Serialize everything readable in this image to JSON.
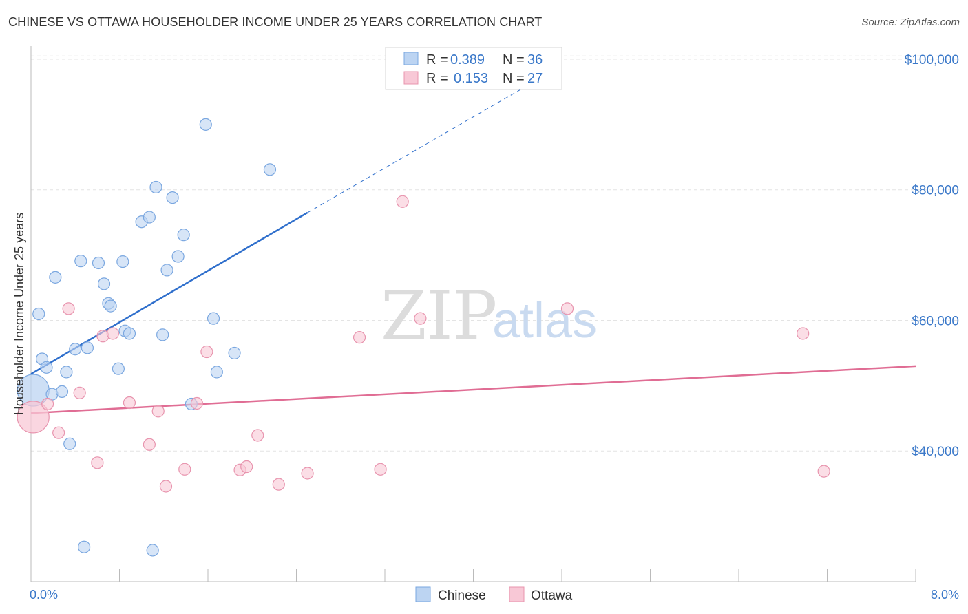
{
  "header": {
    "title": "CHINESE VS OTTAWA HOUSEHOLDER INCOME UNDER 25 YEARS CORRELATION CHART",
    "source": "Source: ZipAtlas.com"
  },
  "watermark": {
    "zip": "ZIP",
    "atlas": "atlas"
  },
  "colors": {
    "chinese_fill": "#bcd4f2",
    "chinese_stroke": "#7aa7e0",
    "chinese_line": "#2f6fcc",
    "ottawa_fill": "#f8c8d6",
    "ottawa_stroke": "#e894ae",
    "ottawa_line": "#e06d94",
    "axis_text": "#3a78c9",
    "grid": "#e4e4e4"
  },
  "chart_data": {
    "type": "scatter",
    "title": "CHINESE VS OTTAWA HOUSEHOLDER INCOME UNDER 25 YEARS CORRELATION CHART",
    "xlabel": "",
    "ylabel": "Householder Income Under 25 years",
    "xlim": [
      0,
      8
    ],
    "ylim": [
      20000,
      102000
    ],
    "x_tick_labels": [
      "0.0%",
      "8.0%"
    ],
    "y_ticks": [
      40000,
      60000,
      80000,
      100000
    ],
    "y_tick_labels": [
      "$40,000",
      "$60,000",
      "$80,000",
      "$100,000"
    ],
    "grid": true,
    "legend": [
      {
        "r_label": "R =",
        "r_value": "0.389",
        "n_label": "N =",
        "n_value": "36"
      },
      {
        "r_label": "R =",
        "r_value": "0.153",
        "n_label": "N =",
        "n_value": "27"
      }
    ],
    "series": [
      {
        "name": "Chinese",
        "r": 0.389,
        "n": 36,
        "trend": {
          "x0": 0.0,
          "y0": 51800,
          "x1": 2.5,
          "y1": 76500,
          "dash_to_x": 4.8,
          "dash_to_y": 99000
        },
        "points": [
          {
            "x": 0.02,
            "y": 49300,
            "big": true
          },
          {
            "x": 0.07,
            "y": 61000
          },
          {
            "x": 0.1,
            "y": 54100
          },
          {
            "x": 0.14,
            "y": 52800
          },
          {
            "x": 0.19,
            "y": 48700
          },
          {
            "x": 0.22,
            "y": 66600
          },
          {
            "x": 0.28,
            "y": 49100
          },
          {
            "x": 0.32,
            "y": 52100
          },
          {
            "x": 0.35,
            "y": 41100
          },
          {
            "x": 0.4,
            "y": 55600
          },
          {
            "x": 0.45,
            "y": 69100
          },
          {
            "x": 0.48,
            "y": 25300
          },
          {
            "x": 0.51,
            "y": 55800
          },
          {
            "x": 0.61,
            "y": 68800
          },
          {
            "x": 0.66,
            "y": 65600
          },
          {
            "x": 0.7,
            "y": 62600
          },
          {
            "x": 0.72,
            "y": 62200
          },
          {
            "x": 0.79,
            "y": 52600
          },
          {
            "x": 0.83,
            "y": 69000
          },
          {
            "x": 0.85,
            "y": 58400
          },
          {
            "x": 0.89,
            "y": 58000
          },
          {
            "x": 1.0,
            "y": 75100
          },
          {
            "x": 1.07,
            "y": 75800
          },
          {
            "x": 1.1,
            "y": 24800
          },
          {
            "x": 1.13,
            "y": 80400
          },
          {
            "x": 1.19,
            "y": 57800
          },
          {
            "x": 1.23,
            "y": 67700
          },
          {
            "x": 1.28,
            "y": 78800
          },
          {
            "x": 1.33,
            "y": 69800
          },
          {
            "x": 1.38,
            "y": 73100
          },
          {
            "x": 1.45,
            "y": 47200
          },
          {
            "x": 1.58,
            "y": 90000
          },
          {
            "x": 1.65,
            "y": 60300
          },
          {
            "x": 1.68,
            "y": 52100
          },
          {
            "x": 1.84,
            "y": 55000
          },
          {
            "x": 2.16,
            "y": 83100
          }
        ]
      },
      {
        "name": "Ottawa",
        "r": 0.153,
        "n": 27,
        "trend": {
          "x0": 0.0,
          "y0": 45800,
          "x1": 8.0,
          "y1": 53000
        },
        "points": [
          {
            "x": 0.02,
            "y": 45200,
            "big": true
          },
          {
            "x": 0.15,
            "y": 47200
          },
          {
            "x": 0.25,
            "y": 42800
          },
          {
            "x": 0.34,
            "y": 61800
          },
          {
            "x": 0.44,
            "y": 48900
          },
          {
            "x": 0.6,
            "y": 38200
          },
          {
            "x": 0.65,
            "y": 57600
          },
          {
            "x": 0.74,
            "y": 58000
          },
          {
            "x": 0.89,
            "y": 47400
          },
          {
            "x": 1.07,
            "y": 41000
          },
          {
            "x": 1.15,
            "y": 46100
          },
          {
            "x": 1.22,
            "y": 34600
          },
          {
            "x": 1.39,
            "y": 37200
          },
          {
            "x": 1.5,
            "y": 47300
          },
          {
            "x": 1.59,
            "y": 55200
          },
          {
            "x": 1.89,
            "y": 37100
          },
          {
            "x": 1.95,
            "y": 37600
          },
          {
            "x": 2.05,
            "y": 42400
          },
          {
            "x": 2.24,
            "y": 34900
          },
          {
            "x": 2.5,
            "y": 36600
          },
          {
            "x": 2.97,
            "y": 57400
          },
          {
            "x": 3.16,
            "y": 37200
          },
          {
            "x": 3.36,
            "y": 78200
          },
          {
            "x": 3.52,
            "y": 60300
          },
          {
            "x": 4.85,
            "y": 61800
          },
          {
            "x": 6.98,
            "y": 58000
          },
          {
            "x": 7.17,
            "y": 36900
          }
        ]
      }
    ]
  }
}
